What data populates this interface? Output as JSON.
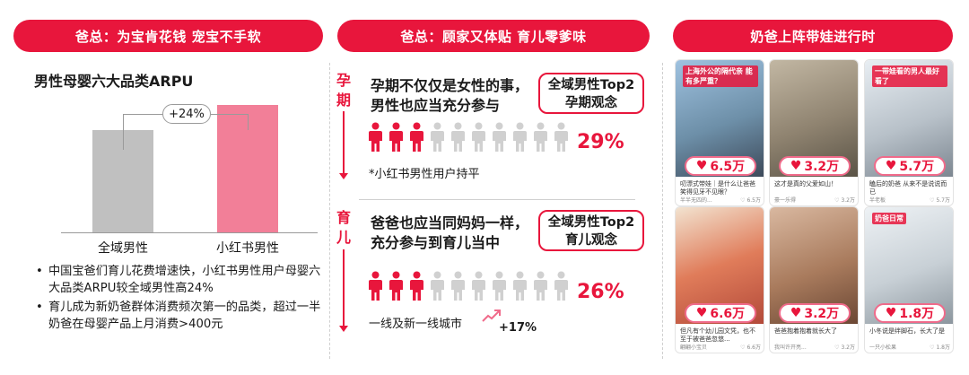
{
  "headers": {
    "left": "爸总：为宝肯花钱 宠宝不手软",
    "middle": "爸总：顾家又体贴 育儿零爹味",
    "right": "奶爸上阵带娃进行时"
  },
  "arpu_panel": {
    "title": "男性母婴六大品类ARPU",
    "delta_label": "+24%",
    "bullets": [
      "中国宝爸们育儿花费增速快，小红书男性用户母婴六大品类ARPU较全域男性高24%",
      "育儿成为新奶爸群体消费频次第一的品类，超过一半奶爸在母婴产品上月消费>400元"
    ]
  },
  "chart_data": {
    "type": "bar",
    "title": "男性母婴六大品类ARPU",
    "categories": [
      "全域男性",
      "小红书男性"
    ],
    "values": [
      100,
      124
    ],
    "ylim": [
      0,
      140
    ],
    "annotation": "+24%",
    "colors": [
      "#c0c0c0",
      "#f27f98"
    ],
    "grid": false
  },
  "pregnancy": {
    "side_label": "孕期",
    "statement": [
      "孕期不仅仅是女性的事，",
      "男性也应当充分参与"
    ],
    "tag": [
      "全域男性Top2",
      "孕期观念"
    ],
    "share": 0.29,
    "percent_text": "29%",
    "note": "*小红书男性用户持平"
  },
  "parenting": {
    "side_label": "育儿",
    "statement": [
      "爸爸也应当同妈妈一样，",
      "充分参与到育儿当中"
    ],
    "tag": [
      "全域男性Top2",
      "育儿观念"
    ],
    "share": 0.26,
    "percent_text": "26%",
    "note": "一线及新一线城市",
    "growth": "+17%"
  },
  "colors": {
    "accent": "#e8163c",
    "pink": "#f27f98",
    "grey": "#c0c0c0"
  },
  "cards": [
    {
      "likes": "6.5万",
      "overlay": "上海外公的隔代亲 能有多严重？",
      "caption": "叨漂式带娃｜是什么让爸爸笑得见牙不见眼？",
      "author": "半半无四的...",
      "count": "6.5万"
    },
    {
      "likes": "3.2万",
      "overlay": "",
      "caption": "这才是真的父爱如山！",
      "author": "豪一乐得",
      "count": "3.2万"
    },
    {
      "likes": "5.7万",
      "overlay": "一带娃看的男人最好看了",
      "caption": "瞌后的奶爸 从来不是说说而已",
      "author": "半老板",
      "count": "5.7万"
    },
    {
      "likes": "6.6万",
      "overlay": "",
      "caption": "但凡有个幼儿园文凭，也不至于被爸爸忽悠...",
      "author": "翩翩小宝贝",
      "count": "6.6万"
    },
    {
      "likes": "3.2万",
      "overlay": "",
      "caption": "爸爸抱着抱着就长大了",
      "author": "我叫许开亮...",
      "count": "3.2万"
    },
    {
      "likes": "1.8万",
      "overlay": "奶爸日常",
      "caption": "小冬说是绊脚石，长大了是",
      "author": "一只小松果",
      "count": "1.8万"
    }
  ]
}
